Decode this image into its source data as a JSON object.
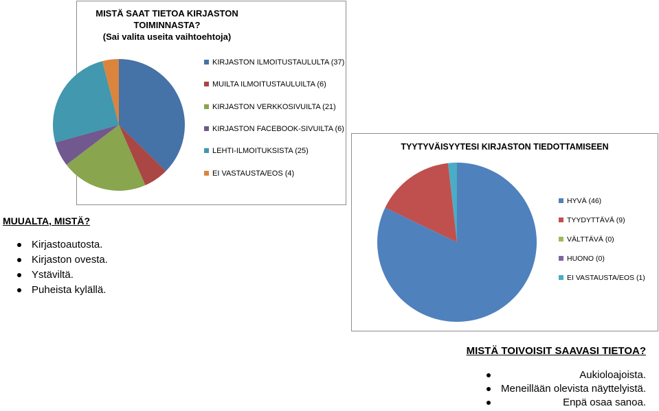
{
  "chart_data": [
    {
      "type": "pie",
      "title": "MISTÄ SAAT TIETOA KIRJASTON TOIMINNASTA?",
      "subtitle": "(Sai valita useita vaihtoehtoja)",
      "legend_position": "right",
      "slices": [
        {
          "label": "KIRJASTON ILMOITUSTAULULTA (37)",
          "value": 37,
          "color": "#4572a7"
        },
        {
          "label": "MUILTA ILMOITUSTAULUILTA (6)",
          "value": 6,
          "color": "#aa4643"
        },
        {
          "label": "KIRJASTON VERKKOSIVUILTA (21)",
          "value": 21,
          "color": "#89a54e"
        },
        {
          "label": "KIRJASTON FACEBOOK-SIVUILTA (6)",
          "value": 6,
          "color": "#71588f"
        },
        {
          "label": "LEHTI-ILMOITUKSISTA (25)",
          "value": 25,
          "color": "#4198af"
        },
        {
          "label": "EI VASTAUSTA/EOS (4)",
          "value": 4,
          "color": "#db843d"
        }
      ]
    },
    {
      "type": "pie",
      "title": "TYYTYVÄISYYTESI KIRJASTON TIEDOTTAMISEEN",
      "legend_position": "right",
      "slices": [
        {
          "label": "HYVÄ (46)",
          "value": 46,
          "color": "#4f81bd"
        },
        {
          "label": "TYYDYTTÄVÄ (9)",
          "value": 9,
          "color": "#c0504d"
        },
        {
          "label": "VÄLTTÄVÄ (0)",
          "value": 0,
          "color": "#9bbb59"
        },
        {
          "label": "HUONO (0)",
          "value": 0,
          "color": "#8064a2"
        },
        {
          "label": "EI VASTAUSTA/EOS (1)",
          "value": 1,
          "color": "#4bacc6"
        }
      ]
    }
  ],
  "muualta": {
    "heading": "MUUALTA, MISTÄ?",
    "items": [
      "Kirjastoautosta.",
      "Kirjaston ovesta.",
      "Ystäviltä.",
      "Puheista kylällä."
    ]
  },
  "toivoisit": {
    "heading": "MISTÄ TOIVOISIT SAAVASI TIETOA?",
    "items": [
      "Aukioloajoista.",
      "Meneillään olevista näyttelyistä.",
      "Enpä osaa sanoa."
    ]
  }
}
